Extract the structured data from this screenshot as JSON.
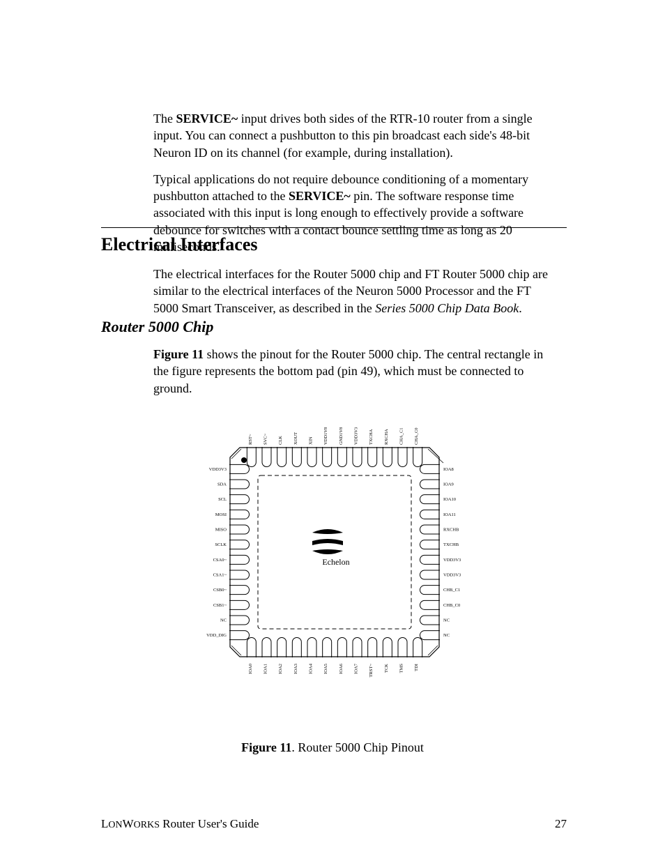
{
  "para1_pre": "The ",
  "para1_bold": "SERVICE~",
  "para1_post": " input drives both sides of the RTR-10 router from a single input. You can connect a pushbutton to this pin broadcast each side's 48-bit Neuron ID on its channel (for example, during installation).",
  "para2_pre": "Typical applications do not require debounce conditioning of a momentary pushbutton attached to the ",
  "para2_bold": "SERVICE~",
  "para2_post": " pin.  The software response time associated with this input is long enough to effectively provide a software debounce for switches with a contact bounce settling time as long as 20 milliseconds.",
  "heading_electrical": "Electrical Interfaces",
  "para_electrical_pre": "The electrical interfaces for the Router 5000 chip and FT Router 5000 chip are similar to the electrical interfaces of the Neuron 5000 Processor and the FT 5000 Smart Transceiver, as described in the ",
  "para_electrical_italic": "Series 5000 Chip Data Book",
  "para_electrical_post": ".",
  "heading_router5000": "Router 5000 Chip",
  "para_router_bold": "Figure 11",
  "para_router_post": " shows the pinout for the Router 5000 chip.  The central rectangle in the figure represents the bottom pad (pin 49), which must be connected to ground.",
  "caption_bold": "Figure 11",
  "caption_rest": ". Router 5000 Chip Pinout",
  "footer_brand": "LonWorks",
  "footer_rest": " Router User's Guide",
  "footer_page": "27",
  "chip": {
    "label": "Echelon",
    "pins_top": [
      "RST~",
      "SVC~",
      "CLK",
      "XOUT",
      "XIN",
      "VDD1V8",
      "GND1V8",
      "VDD3V3",
      "TXCHA",
      "RXCHA",
      "CHA_C1",
      "CHA_C0"
    ],
    "pins_right": [
      "IOA8",
      "IOA9",
      "IOA10",
      "IOA11",
      "RXCHB",
      "TXCHB",
      "VDD3V3",
      "VDD3V3",
      "CHB_C1",
      "CHB_C0",
      "NC",
      "NC"
    ],
    "pins_bottom": [
      "IOA0",
      "IOA1",
      "IOA2",
      "IOA3",
      "IOA4",
      "IOA5",
      "IOA6",
      "IOA7",
      "TRST~",
      "TCK",
      "TMS",
      "TDI"
    ],
    "pins_left": [
      "VDD3V3",
      "SDA",
      "SCL",
      "MOSI",
      "MISO",
      "SCLK",
      "CSA0~",
      "CSA1~",
      "CSB0~",
      "CSB1~",
      "NC",
      "VDD_DIG"
    ],
    "outline_color": "#000000",
    "pad_dash": "6,4",
    "text_color": "#000000",
    "font_size_pin": 6.5,
    "font_size_label": 12
  }
}
